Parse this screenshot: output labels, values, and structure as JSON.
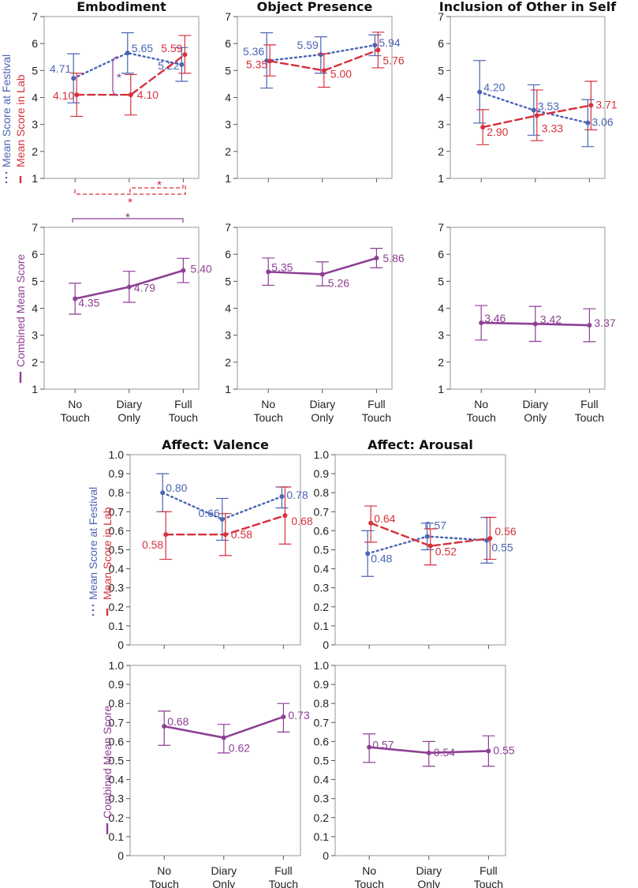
{
  "colors": {
    "festival": "#4a64b4",
    "lab": "#d6313c",
    "combined": "#8e3f94",
    "frame": "#a8a8a8"
  },
  "legend": {
    "festival": "Mean Score at Festival",
    "lab": "Mean Score in Lab",
    "combined": "Combined Mean Score"
  },
  "significance": {
    "star": "*"
  },
  "chart_data": [
    {
      "type": "line",
      "title": "Embodiment",
      "ylim": [
        1,
        7
      ],
      "yticks": [
        "1",
        "2",
        "3",
        "4",
        "5",
        "6",
        "7"
      ],
      "categories": [
        "No Touch",
        "Diary Only",
        "Full Touch"
      ],
      "series": [
        {
          "name": "Mean Score at Festival",
          "values": [
            4.71,
            5.65,
            5.22
          ],
          "labels": [
            "4.71",
            "5.65",
            "5.22"
          ],
          "ci": [
            [
              3.8,
              5.62
            ],
            [
              4.9,
              6.4
            ],
            [
              4.6,
              5.85
            ]
          ]
        },
        {
          "name": "Mean Score in Lab",
          "values": [
            4.1,
            4.1,
            5.59
          ],
          "labels": [
            "4.10",
            "4.10",
            "5.59"
          ],
          "ci": [
            [
              3.3,
              4.9
            ],
            [
              3.35,
              4.85
            ],
            [
              4.9,
              6.3
            ]
          ]
        }
      ]
    },
    {
      "type": "line",
      "title": "Object Presence",
      "ylim": [
        1,
        7
      ],
      "yticks": [
        "1",
        "2",
        "3",
        "4",
        "5",
        "6",
        "7"
      ],
      "categories": [
        "No Touch",
        "Diary Only",
        "Full Touch"
      ],
      "series": [
        {
          "name": "Mean Score at Festival",
          "values": [
            5.36,
            5.59,
            5.94
          ],
          "labels": [
            "5.36",
            "5.59",
            "5.94"
          ],
          "ci": [
            [
              4.35,
              6.4
            ],
            [
              4.9,
              6.25
            ],
            [
              5.55,
              6.32
            ]
          ]
        },
        {
          "name": "Mean Score in Lab",
          "values": [
            5.35,
            5.0,
            5.76
          ],
          "labels": [
            "5.35",
            "5.00",
            "5.76"
          ],
          "ci": [
            [
              4.8,
              5.95
            ],
            [
              4.38,
              5.62
            ],
            [
              5.1,
              6.42
            ]
          ]
        }
      ]
    },
    {
      "type": "line",
      "title": "Inclusion of Other in Self",
      "ylim": [
        1,
        7
      ],
      "yticks": [
        "1",
        "2",
        "3",
        "4",
        "5",
        "6",
        "7"
      ],
      "categories": [
        "No Touch",
        "Diary Only",
        "Full Touch"
      ],
      "series": [
        {
          "name": "Mean Score at Festival",
          "values": [
            4.2,
            3.53,
            3.06
          ],
          "labels": [
            "4.20",
            "3.53",
            "3.06"
          ],
          "ci": [
            [
              3.05,
              5.37
            ],
            [
              2.6,
              4.47
            ],
            [
              2.18,
              3.92
            ]
          ]
        },
        {
          "name": "Mean Score in Lab",
          "values": [
            2.9,
            3.33,
            3.71
          ],
          "labels": [
            "2.90",
            "3.33",
            "3.71"
          ],
          "ci": [
            [
              2.25,
              3.55
            ],
            [
              2.4,
              4.28
            ],
            [
              2.8,
              4.6
            ]
          ]
        }
      ]
    },
    {
      "type": "line",
      "title": "",
      "ylabel": "Combined Mean Score",
      "ylim": [
        1,
        7
      ],
      "yticks": [
        "1",
        "2",
        "3",
        "4",
        "5",
        "6",
        "7"
      ],
      "categories": [
        "No Touch",
        "Diary Only",
        "Full Touch"
      ],
      "series": [
        {
          "name": "Combined Mean Score",
          "values": [
            4.35,
            4.79,
            5.4
          ],
          "labels": [
            "4.35",
            "4.79",
            "5.40"
          ],
          "ci": [
            [
              3.78,
              4.93
            ],
            [
              4.22,
              5.37
            ],
            [
              4.95,
              5.85
            ]
          ]
        }
      ]
    },
    {
      "type": "line",
      "title": "",
      "ylim": [
        1,
        7
      ],
      "yticks": [
        "1",
        "2",
        "3",
        "4",
        "5",
        "6",
        "7"
      ],
      "categories": [
        "No Touch",
        "Diary Only",
        "Full Touch"
      ],
      "series": [
        {
          "name": "Combined Mean Score",
          "values": [
            5.35,
            5.26,
            5.86
          ],
          "labels": [
            "5.35",
            "5.26",
            "5.86"
          ],
          "ci": [
            [
              4.85,
              5.86
            ],
            [
              4.83,
              5.72
            ],
            [
              5.5,
              6.22
            ]
          ]
        }
      ]
    },
    {
      "type": "line",
      "title": "",
      "ylim": [
        1,
        7
      ],
      "yticks": [
        "1",
        "2",
        "3",
        "4",
        "5",
        "6",
        "7"
      ],
      "categories": [
        "No Touch",
        "Diary Only",
        "Full Touch"
      ],
      "series": [
        {
          "name": "Combined Mean Score",
          "values": [
            3.46,
            3.42,
            3.37
          ],
          "labels": [
            "3.46",
            "3.42",
            "3.37"
          ],
          "ci": [
            [
              2.82,
              4.1
            ],
            [
              2.77,
              4.07
            ],
            [
              2.76,
              3.98
            ]
          ]
        }
      ]
    },
    {
      "type": "line",
      "title": "Affect: Valence",
      "ylim": [
        0,
        1
      ],
      "yticks": [
        "0",
        "0.1",
        "0.2",
        "0.3",
        "0.4",
        "0.5",
        "0.6",
        "0.7",
        "0.8",
        "0.9",
        "1.0"
      ],
      "categories": [
        "No Touch",
        "Diary Only",
        "Full Touch"
      ],
      "series": [
        {
          "name": "Mean Score at Festival",
          "values": [
            0.8,
            0.66,
            0.78
          ],
          "labels": [
            "0.80",
            "0.66",
            "0.78"
          ],
          "ci": [
            [
              0.7,
              0.9
            ],
            [
              0.55,
              0.77
            ],
            [
              0.72,
              0.83
            ]
          ]
        },
        {
          "name": "Mean Score in Lab",
          "values": [
            0.58,
            0.58,
            0.68
          ],
          "labels": [
            "0.58",
            "0.58",
            "0.68"
          ],
          "ci": [
            [
              0.45,
              0.7
            ],
            [
              0.47,
              0.69
            ],
            [
              0.53,
              0.83
            ]
          ]
        }
      ]
    },
    {
      "type": "line",
      "title": "Affect: Arousal",
      "ylim": [
        0,
        1
      ],
      "yticks": [
        "0",
        "0.1",
        "0.2",
        "0.3",
        "0.4",
        "0.5",
        "0.6",
        "0.7",
        "0.8",
        "0.9",
        "1.0"
      ],
      "categories": [
        "No Touch",
        "Diary Only",
        "Full Touch"
      ],
      "series": [
        {
          "name": "Mean Score at Festival",
          "values": [
            0.48,
            0.57,
            0.55
          ],
          "labels": [
            "0.48",
            "0.57",
            "0.55"
          ],
          "ci": [
            [
              0.36,
              0.6
            ],
            [
              0.5,
              0.64
            ],
            [
              0.43,
              0.67
            ]
          ]
        },
        {
          "name": "Mean Score in Lab",
          "values": [
            0.64,
            0.52,
            0.56
          ],
          "labels": [
            "0.64",
            "0.52",
            "0.56"
          ],
          "ci": [
            [
              0.54,
              0.73
            ],
            [
              0.42,
              0.61
            ],
            [
              0.45,
              0.67
            ]
          ]
        }
      ]
    },
    {
      "type": "line",
      "title": "",
      "ylim": [
        0,
        1
      ],
      "yticks": [
        "0",
        "0.1",
        "0.2",
        "0.3",
        "0.4",
        "0.5",
        "0.6",
        "0.7",
        "0.8",
        "0.9",
        "1.0"
      ],
      "categories": [
        "No Touch",
        "Diary Only",
        "Full Touch"
      ],
      "series": [
        {
          "name": "Combined Mean Score",
          "values": [
            0.68,
            0.62,
            0.73
          ],
          "labels": [
            "0.68",
            "0.62",
            "0.73"
          ],
          "ci": [
            [
              0.58,
              0.76
            ],
            [
              0.54,
              0.69
            ],
            [
              0.65,
              0.8
            ]
          ]
        }
      ]
    },
    {
      "type": "line",
      "title": "",
      "ylim": [
        0,
        1
      ],
      "yticks": [
        "0",
        "0.1",
        "0.2",
        "0.3",
        "0.4",
        "0.5",
        "0.6",
        "0.7",
        "0.8",
        "0.9",
        "1.0"
      ],
      "categories": [
        "No Touch",
        "Diary Only",
        "Full Touch"
      ],
      "series": [
        {
          "name": "Combined Mean Score",
          "values": [
            0.57,
            0.54,
            0.55
          ],
          "labels": [
            "0.57",
            "0.54",
            "0.55"
          ],
          "ci": [
            [
              0.49,
              0.64
            ],
            [
              0.47,
              0.6
            ],
            [
              0.47,
              0.63
            ]
          ]
        }
      ]
    }
  ]
}
